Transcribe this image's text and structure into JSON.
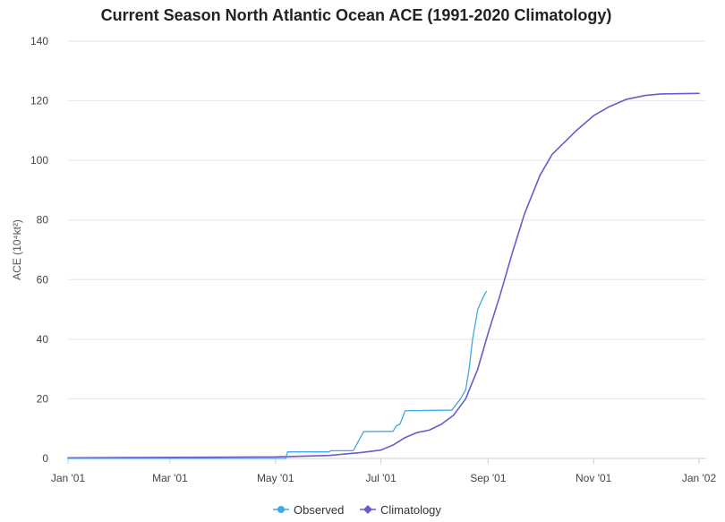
{
  "chart_data": {
    "type": "line",
    "title": "Current Season North Atlantic Ocean ACE (1991-2020 Climatology)",
    "ylabel": "ACE (10⁴kt²)",
    "xlabel": "",
    "xlim": [
      "2021-01-01",
      "2022-01-01"
    ],
    "ylim": [
      0,
      140
    ],
    "x_ticks": [
      {
        "date": "2021-01-01",
        "label": "Jan '01"
      },
      {
        "date": "2021-03-01",
        "label": "Mar '01"
      },
      {
        "date": "2021-05-01",
        "label": "May '01"
      },
      {
        "date": "2021-07-01",
        "label": "Jul '01"
      },
      {
        "date": "2021-09-01",
        "label": "Sep '01"
      },
      {
        "date": "2021-11-01",
        "label": "Nov '01"
      },
      {
        "date": "2022-01-01",
        "label": "Jan '02"
      }
    ],
    "y_ticks": [
      0,
      20,
      40,
      60,
      80,
      100,
      120,
      140
    ],
    "grid": true,
    "legend_position": "bottom-center",
    "series": [
      {
        "name": "Observed",
        "color": "#3fa9e6",
        "marker": "circle",
        "points": [
          {
            "x": "2021-01-01",
            "y": 0
          },
          {
            "x": "2021-05-07",
            "y": 0
          },
          {
            "x": "2021-05-08",
            "y": 2.2
          },
          {
            "x": "2021-06-01",
            "y": 2.2
          },
          {
            "x": "2021-06-02",
            "y": 2.6
          },
          {
            "x": "2021-06-15",
            "y": 2.6
          },
          {
            "x": "2021-06-21",
            "y": 9.0
          },
          {
            "x": "2021-07-08",
            "y": 9.1
          },
          {
            "x": "2021-07-10",
            "y": 11.0
          },
          {
            "x": "2021-07-12",
            "y": 11.5
          },
          {
            "x": "2021-07-15",
            "y": 16.0
          },
          {
            "x": "2021-08-11",
            "y": 16.2
          },
          {
            "x": "2021-08-16",
            "y": 20.0
          },
          {
            "x": "2021-08-19",
            "y": 23.0
          },
          {
            "x": "2021-08-21",
            "y": 30.0
          },
          {
            "x": "2021-08-23",
            "y": 40.0
          },
          {
            "x": "2021-08-26",
            "y": 50.0
          },
          {
            "x": "2021-08-29",
            "y": 54.0
          },
          {
            "x": "2021-08-31",
            "y": 56.0
          }
        ]
      },
      {
        "name": "Climatology",
        "color": "#6a5acd",
        "marker": "diamond",
        "points": [
          {
            "x": "2021-01-01",
            "y": 0.2
          },
          {
            "x": "2021-05-01",
            "y": 0.5
          },
          {
            "x": "2021-06-01",
            "y": 1.0
          },
          {
            "x": "2021-06-20",
            "y": 2.0
          },
          {
            "x": "2021-07-01",
            "y": 2.8
          },
          {
            "x": "2021-07-08",
            "y": 4.5
          },
          {
            "x": "2021-07-15",
            "y": 7.0
          },
          {
            "x": "2021-07-22",
            "y": 8.7
          },
          {
            "x": "2021-07-29",
            "y": 9.5
          },
          {
            "x": "2021-08-05",
            "y": 11.5
          },
          {
            "x": "2021-08-12",
            "y": 14.5
          },
          {
            "x": "2021-08-19",
            "y": 20.0
          },
          {
            "x": "2021-08-26",
            "y": 30.0
          },
          {
            "x": "2021-09-01",
            "y": 42.0
          },
          {
            "x": "2021-09-08",
            "y": 55.0
          },
          {
            "x": "2021-09-15",
            "y": 69.0
          },
          {
            "x": "2021-09-22",
            "y": 82.0
          },
          {
            "x": "2021-10-01",
            "y": 95.0
          },
          {
            "x": "2021-10-08",
            "y": 102.0
          },
          {
            "x": "2021-10-15",
            "y": 106.0
          },
          {
            "x": "2021-10-22",
            "y": 110.0
          },
          {
            "x": "2021-11-01",
            "y": 115.0
          },
          {
            "x": "2021-11-10",
            "y": 118.0
          },
          {
            "x": "2021-11-20",
            "y": 120.5
          },
          {
            "x": "2021-12-01",
            "y": 121.8
          },
          {
            "x": "2021-12-10",
            "y": 122.3
          },
          {
            "x": "2022-01-01",
            "y": 122.5
          }
        ]
      }
    ]
  }
}
